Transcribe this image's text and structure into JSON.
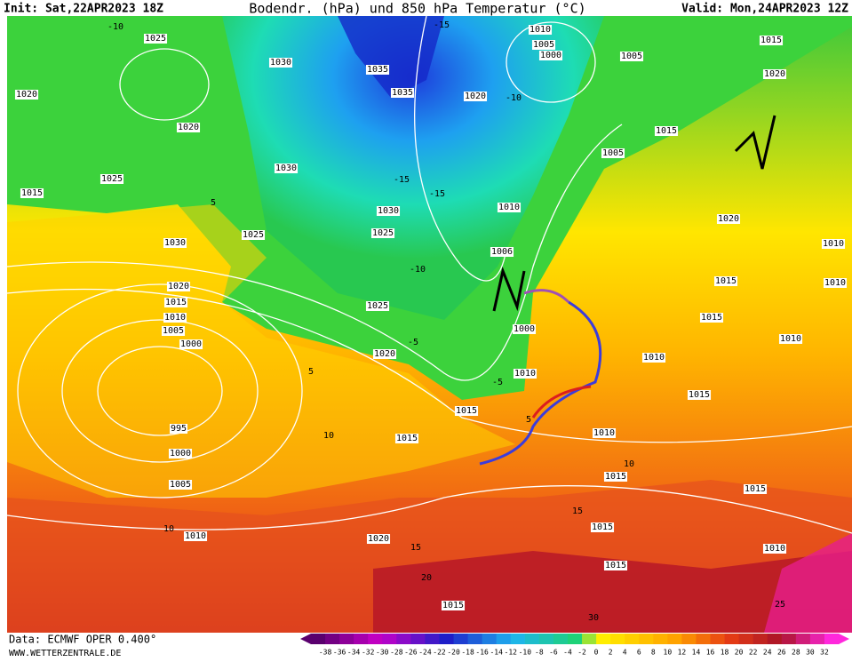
{
  "header": {
    "init": "Init: Sat,22APR2023 18Z",
    "title": "Bodendr. (hPa) und 850 hPa Temperatur (°C)",
    "valid": "Valid: Mon,24APR2023 12Z"
  },
  "footer": {
    "data_source": "Data: ECMWF OPER 0.400°",
    "website": "WWW.WETTERZENTRALE.DE"
  },
  "colorbar": {
    "labels": [
      -38,
      -36,
      -34,
      -32,
      -30,
      -28,
      -26,
      -24,
      -22,
      -20,
      -18,
      -16,
      -14,
      -12,
      -10,
      -8,
      -6,
      -4,
      -2,
      0,
      2,
      4,
      6,
      8,
      10,
      12,
      14,
      16,
      18,
      20,
      22,
      24,
      26,
      28,
      30,
      32
    ]
  },
  "isobar_labels": [
    "1025",
    "1030",
    "1035",
    "1035",
    "1020",
    "1010",
    "1005",
    "1000",
    "1005",
    "1015",
    "1020",
    "1020",
    "1020",
    "1015",
    "1005",
    "1030",
    "1025",
    "1015",
    "1030",
    "1010",
    "1025",
    "1025",
    "1030",
    "1020",
    "1010",
    "1006",
    "1015",
    "1010",
    "1020",
    "1015",
    "1025",
    "1010",
    "1015",
    "1005",
    "1000",
    "1010",
    "1000",
    "1020",
    "1010",
    "1010",
    "1015",
    "1015",
    "1015",
    "995",
    "1010",
    "1000",
    "1015",
    "1005",
    "1015",
    "1010",
    "1020",
    "1015",
    "1010",
    "1015",
    "1015"
  ],
  "temperature_labels": [
    "-10",
    "-15",
    "-15",
    "-15",
    "-10",
    "-10",
    "-5",
    "-5",
    "5",
    "5",
    "5",
    "10",
    "10",
    "10",
    "15",
    "15",
    "20",
    "25",
    "30"
  ]
}
